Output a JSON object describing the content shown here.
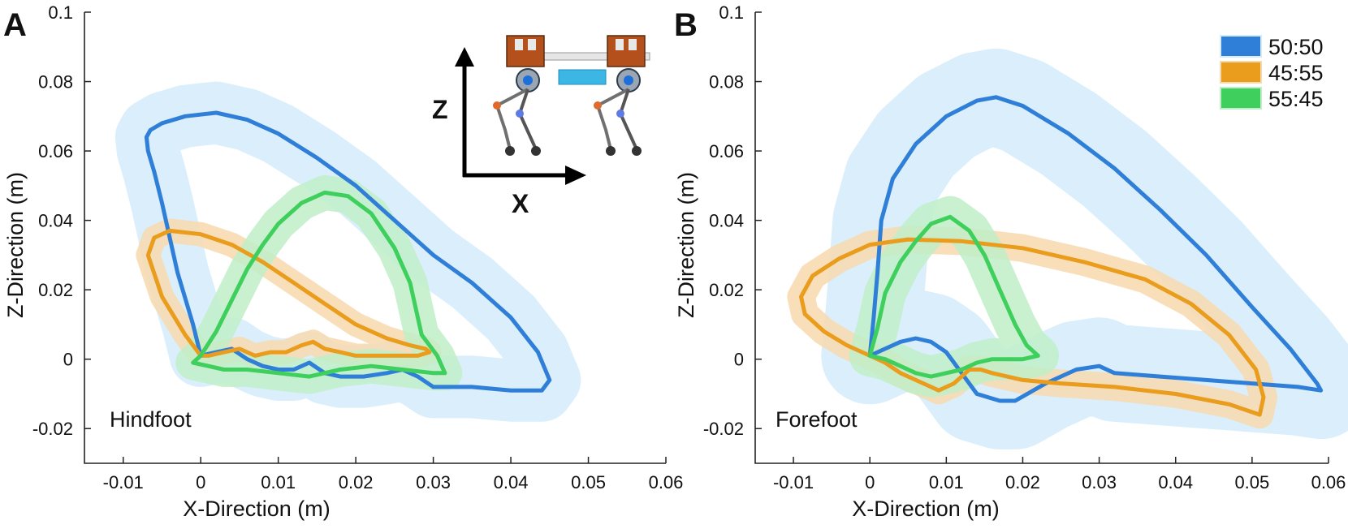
{
  "colors": {
    "s5050": "#2f7fd8",
    "s4555": "#ea9c1c",
    "s5545": "#3ecf5c",
    "b5050": "#d4ecfa",
    "b4555": "#f7d9ae",
    "b5545": "#bfeec8"
  },
  "legend": {
    "items": [
      "50:50",
      "45:55",
      "55:45"
    ]
  },
  "inset": {
    "z_label": "Z",
    "x_label": "X"
  },
  "chart_data": [
    {
      "type": "line",
      "panel": "A",
      "name": "Hindfoot",
      "xlabel": "X-Direction (m)",
      "ylabel": "Z-Direction (m)",
      "xlim": [
        -0.015,
        0.06
      ],
      "ylim": [
        -0.03,
        0.1
      ],
      "xticks": [
        -0.01,
        0,
        0.01,
        0.02,
        0.03,
        0.04,
        0.05,
        0.06
      ],
      "yticks": [
        -0.02,
        0,
        0.02,
        0.04,
        0.06,
        0.08,
        0.1
      ],
      "xtick_labels": [
        "-0.01",
        "0",
        "0.01",
        "0.02",
        "0.03",
        "0.04",
        "0.05",
        "0.06"
      ],
      "ytick_labels": [
        "-0.02",
        "0",
        "0.02",
        "0.04",
        "0.06",
        "0.08",
        "0.1"
      ],
      "series": [
        {
          "name": "50:50",
          "color_key": "s5050",
          "band_key": "b5050",
          "band": 0.009,
          "x": [
            0.0,
            -0.001,
            -0.003,
            -0.005,
            -0.006,
            -0.0068,
            -0.007,
            -0.0065,
            -0.005,
            -0.002,
            0.002,
            0.006,
            0.01,
            0.015,
            0.02,
            0.025,
            0.03,
            0.035,
            0.04,
            0.0435,
            0.045,
            0.044,
            0.04,
            0.035,
            0.03,
            0.028,
            0.026,
            0.024,
            0.021,
            0.018,
            0.016,
            0.014,
            0.012,
            0.01,
            0.008,
            0.006,
            0.004,
            0.002,
            0.0
          ],
          "y": [
            0.001,
            0.01,
            0.025,
            0.045,
            0.054,
            0.06,
            0.064,
            0.066,
            0.068,
            0.07,
            0.071,
            0.069,
            0.065,
            0.058,
            0.05,
            0.04,
            0.03,
            0.022,
            0.012,
            0.002,
            -0.006,
            -0.009,
            -0.009,
            -0.008,
            -0.008,
            -0.005,
            -0.003,
            -0.004,
            -0.005,
            -0.005,
            -0.004,
            -0.001,
            -0.003,
            -0.003,
            -0.002,
            0.0,
            0.003,
            0.002,
            0.001
          ]
        },
        {
          "name": "45:55",
          "color_key": "s4555",
          "band_key": "b4555",
          "band": 0.0035,
          "x": [
            0.0,
            -0.002,
            -0.005,
            -0.0068,
            -0.006,
            -0.004,
            0.0,
            0.004,
            0.008,
            0.012,
            0.016,
            0.02,
            0.024,
            0.027,
            0.029,
            0.0295,
            0.028,
            0.024,
            0.02,
            0.018,
            0.016,
            0.0145,
            0.013,
            0.011,
            0.009,
            0.007,
            0.005,
            0.003,
            0.001,
            0.0
          ],
          "y": [
            0.001,
            0.007,
            0.018,
            0.03,
            0.035,
            0.037,
            0.036,
            0.033,
            0.028,
            0.022,
            0.016,
            0.01,
            0.006,
            0.004,
            0.003,
            0.002,
            0.001,
            0.001,
            0.001,
            0.002,
            0.003,
            0.005,
            0.004,
            0.002,
            0.002,
            0.001,
            0.003,
            0.002,
            0.001,
            0.001
          ]
        },
        {
          "name": "55:45",
          "color_key": "s5545",
          "band_key": "b5545",
          "band": 0.005,
          "x": [
            0.0,
            0.002,
            0.004,
            0.006,
            0.008,
            0.01,
            0.013,
            0.016,
            0.019,
            0.022,
            0.025,
            0.027,
            0.028,
            0.0285,
            0.0305,
            0.0315,
            0.03,
            0.026,
            0.022,
            0.018,
            0.014,
            0.01,
            0.006,
            0.003,
            0.001,
            -0.001,
            0.0
          ],
          "y": [
            0.001,
            0.008,
            0.017,
            0.026,
            0.033,
            0.039,
            0.045,
            0.048,
            0.047,
            0.042,
            0.032,
            0.022,
            0.012,
            0.007,
            0.001,
            -0.004,
            -0.004,
            -0.003,
            -0.002,
            -0.003,
            -0.005,
            -0.004,
            -0.003,
            -0.003,
            -0.002,
            -0.001,
            0.001
          ]
        }
      ]
    },
    {
      "type": "line",
      "panel": "B",
      "name": "Forefoot",
      "xlabel": "X-Direction (m)",
      "ylabel": "Z-Direction (m)",
      "xlim": [
        -0.015,
        0.06
      ],
      "ylim": [
        -0.03,
        0.1
      ],
      "xticks": [
        -0.01,
        0,
        0.01,
        0.02,
        0.03,
        0.04,
        0.05,
        0.06
      ],
      "yticks": [
        -0.02,
        0,
        0.02,
        0.04,
        0.06,
        0.08,
        0.1
      ],
      "xtick_labels": [
        "-0.01",
        "0",
        "0.01",
        "0.02",
        "0.03",
        "0.04",
        "0.05",
        "0.06"
      ],
      "ytick_labels": [
        "-0.02",
        "0",
        "0.02",
        "0.04",
        "0.06",
        "0.08",
        "0.1"
      ],
      "series": [
        {
          "name": "50:50",
          "color_key": "s5050",
          "band_key": "b5050",
          "band": 0.014,
          "x": [
            0.0,
            0.0005,
            0.001,
            0.0015,
            0.003,
            0.006,
            0.01,
            0.014,
            0.0165,
            0.02,
            0.026,
            0.032,
            0.038,
            0.044,
            0.05,
            0.055,
            0.0585,
            0.059,
            0.056,
            0.05,
            0.044,
            0.038,
            0.032,
            0.03,
            0.027,
            0.023,
            0.019,
            0.017,
            0.014,
            0.012,
            0.01,
            0.008,
            0.006,
            0.004,
            0.002,
            0.0
          ],
          "y": [
            0.001,
            0.012,
            0.025,
            0.04,
            0.052,
            0.062,
            0.07,
            0.0745,
            0.0755,
            0.073,
            0.065,
            0.055,
            0.043,
            0.03,
            0.015,
            0.003,
            -0.007,
            -0.009,
            -0.008,
            -0.007,
            -0.006,
            -0.005,
            -0.004,
            -0.002,
            -0.003,
            -0.007,
            -0.012,
            -0.012,
            -0.01,
            -0.004,
            0.002,
            0.005,
            0.006,
            0.005,
            0.003,
            0.001
          ]
        },
        {
          "name": "45:55",
          "color_key": "s4555",
          "band_key": "b4555",
          "band": 0.004,
          "x": [
            0.0,
            -0.003,
            -0.006,
            -0.0085,
            -0.009,
            -0.0075,
            -0.004,
            0.0,
            0.005,
            0.012,
            0.02,
            0.028,
            0.036,
            0.042,
            0.047,
            0.0505,
            0.0515,
            0.051,
            0.047,
            0.04,
            0.032,
            0.025,
            0.02,
            0.016,
            0.0145,
            0.013,
            0.011,
            0.009,
            0.007,
            0.004,
            0.002,
            0.0
          ],
          "y": [
            0.001,
            0.004,
            0.008,
            0.013,
            0.018,
            0.024,
            0.029,
            0.033,
            0.0345,
            0.034,
            0.032,
            0.028,
            0.023,
            0.016,
            0.007,
            -0.003,
            -0.011,
            -0.016,
            -0.013,
            -0.01,
            -0.008,
            -0.007,
            -0.006,
            -0.004,
            -0.003,
            -0.003,
            -0.007,
            -0.009,
            -0.007,
            -0.004,
            -0.001,
            0.001
          ]
        },
        {
          "name": "55:45",
          "color_key": "s5545",
          "band_key": "b5545",
          "band": 0.006,
          "x": [
            0.0,
            0.001,
            0.002,
            0.004,
            0.006,
            0.008,
            0.0105,
            0.013,
            0.015,
            0.017,
            0.019,
            0.0205,
            0.022,
            0.02,
            0.018,
            0.016,
            0.014,
            0.012,
            0.01,
            0.008,
            0.006,
            0.004,
            0.002,
            0.0
          ],
          "y": [
            0.001,
            0.009,
            0.019,
            0.028,
            0.034,
            0.039,
            0.041,
            0.037,
            0.03,
            0.02,
            0.01,
            0.004,
            0.001,
            0.0,
            0.0,
            0.0,
            -0.001,
            -0.003,
            -0.004,
            -0.005,
            -0.004,
            -0.002,
            0.0,
            0.001
          ]
        }
      ]
    }
  ]
}
